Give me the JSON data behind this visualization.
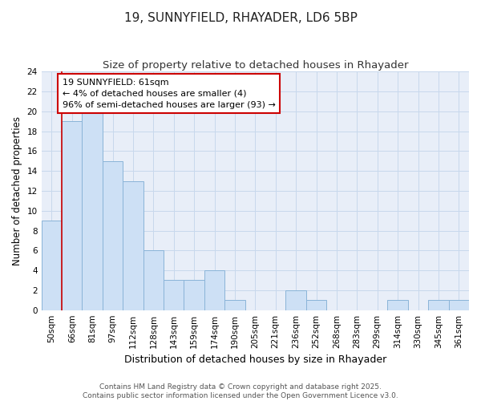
{
  "title": "19, SUNNYFIELD, RHAYADER, LD6 5BP",
  "subtitle": "Size of property relative to detached houses in Rhayader",
  "xlabel": "Distribution of detached houses by size in Rhayader",
  "ylabel": "Number of detached properties",
  "categories": [
    "50sqm",
    "66sqm",
    "81sqm",
    "97sqm",
    "112sqm",
    "128sqm",
    "143sqm",
    "159sqm",
    "174sqm",
    "190sqm",
    "205sqm",
    "221sqm",
    "236sqm",
    "252sqm",
    "268sqm",
    "283sqm",
    "299sqm",
    "314sqm",
    "330sqm",
    "345sqm",
    "361sqm"
  ],
  "values": [
    9,
    19,
    20,
    15,
    13,
    6,
    3,
    3,
    4,
    1,
    0,
    0,
    2,
    1,
    0,
    0,
    0,
    1,
    0,
    1,
    1
  ],
  "bar_color": "#cde0f5",
  "bar_edge_color": "#8ab4d8",
  "annotation_text": "19 SUNNYFIELD: 61sqm\n← 4% of detached houses are smaller (4)\n96% of semi-detached houses are larger (93) →",
  "annotation_box_color": "#ffffff",
  "annotation_box_edge_color": "#cc0000",
  "vline_color": "#cc0000",
  "vline_x": 0.5,
  "ylim": [
    0,
    24
  ],
  "yticks": [
    0,
    2,
    4,
    6,
    8,
    10,
    12,
    14,
    16,
    18,
    20,
    22,
    24
  ],
  "grid_color": "#c8d8ec",
  "plot_bg_color": "#e8eef8",
  "fig_bg_color": "#ffffff",
  "footer_text": "Contains HM Land Registry data © Crown copyright and database right 2025.\nContains public sector information licensed under the Open Government Licence v3.0.",
  "title_fontsize": 11,
  "subtitle_fontsize": 9.5,
  "xlabel_fontsize": 9,
  "ylabel_fontsize": 8.5,
  "tick_fontsize": 7.5,
  "annotation_fontsize": 8,
  "footer_fontsize": 6.5
}
